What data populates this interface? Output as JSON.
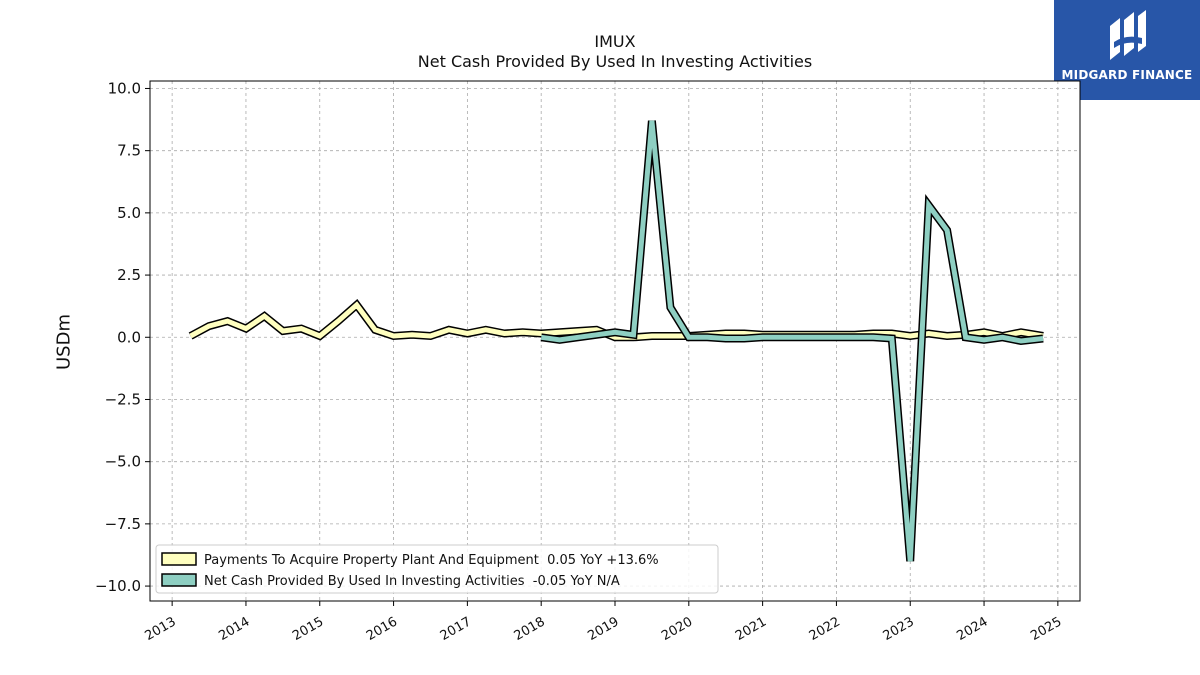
{
  "logo": {
    "text": "MIDGARD FINANCE"
  },
  "chart_data": {
    "type": "line",
    "title": "IMUX",
    "subtitle": "Net Cash Provided By Used In Investing Activities",
    "ylabel": "USDm",
    "xlabel": "",
    "xlim": [
      2012.7,
      2025.3
    ],
    "ylim": [
      -10.6,
      10.3
    ],
    "x_ticks": [
      2013,
      2014,
      2015,
      2016,
      2017,
      2018,
      2019,
      2020,
      2021,
      2022,
      2023,
      2024,
      2025
    ],
    "x_tick_labels": [
      "2013",
      "2014",
      "2015",
      "2016",
      "2017",
      "2018",
      "2019",
      "2020",
      "2021",
      "2022",
      "2023",
      "2024",
      "2025"
    ],
    "y_ticks": [
      10.0,
      7.5,
      5.0,
      2.5,
      0.0,
      -2.5,
      -5.0,
      -7.5,
      -10.0
    ],
    "y_tick_labels": [
      "10.0",
      "7.5",
      "5.0",
      "2.5",
      "0.0",
      "−2.5",
      "−5.0",
      "−7.5",
      "−10.0"
    ],
    "grid": true,
    "legend_position": "lower-left",
    "series": [
      {
        "name": "Payments To Acquire Property Plant And Equipment  0.05 YoY +13.6%",
        "color": "#ffffbf",
        "points": [
          [
            2013.25,
            0.05
          ],
          [
            2013.5,
            0.45
          ],
          [
            2013.75,
            0.65
          ],
          [
            2014.0,
            0.35
          ],
          [
            2014.25,
            0.85
          ],
          [
            2014.5,
            0.25
          ],
          [
            2014.75,
            0.35
          ],
          [
            2015.0,
            0.05
          ],
          [
            2015.25,
            0.65
          ],
          [
            2015.5,
            1.3
          ],
          [
            2015.75,
            0.3
          ],
          [
            2016.0,
            0.05
          ],
          [
            2016.25,
            0.1
          ],
          [
            2016.5,
            0.05
          ],
          [
            2016.75,
            0.3
          ],
          [
            2017.0,
            0.15
          ],
          [
            2017.25,
            0.3
          ],
          [
            2017.5,
            0.15
          ],
          [
            2017.75,
            0.2
          ],
          [
            2018.0,
            0.15
          ],
          [
            2018.25,
            0.2
          ],
          [
            2018.5,
            0.25
          ],
          [
            2018.75,
            0.3
          ],
          [
            2019.0,
            0.0
          ],
          [
            2019.25,
            0.0
          ],
          [
            2019.5,
            0.05
          ],
          [
            2019.75,
            0.05
          ],
          [
            2020.0,
            0.05
          ],
          [
            2020.25,
            0.1
          ],
          [
            2020.5,
            0.15
          ],
          [
            2020.75,
            0.15
          ],
          [
            2021.0,
            0.1
          ],
          [
            2021.25,
            0.1
          ],
          [
            2021.5,
            0.1
          ],
          [
            2021.75,
            0.1
          ],
          [
            2022.0,
            0.1
          ],
          [
            2022.25,
            0.1
          ],
          [
            2022.5,
            0.15
          ],
          [
            2022.75,
            0.15
          ],
          [
            2023.0,
            0.05
          ],
          [
            2023.25,
            0.15
          ],
          [
            2023.5,
            0.05
          ],
          [
            2023.75,
            0.1
          ],
          [
            2024.0,
            0.2
          ],
          [
            2024.25,
            0.05
          ],
          [
            2024.5,
            0.2
          ],
          [
            2024.8,
            0.05
          ]
        ]
      },
      {
        "name": "Net Cash Provided By Used In Investing Activities  -0.05 YoY N/A",
        "color": "#8ecfc2",
        "points": [
          [
            2018.0,
            0.0
          ],
          [
            2018.25,
            -0.1
          ],
          [
            2018.5,
            0.0
          ],
          [
            2018.75,
            0.1
          ],
          [
            2019.0,
            0.2
          ],
          [
            2019.25,
            0.1
          ],
          [
            2019.5,
            8.7
          ],
          [
            2019.75,
            1.2
          ],
          [
            2020.0,
            0.0
          ],
          [
            2020.25,
            0.0
          ],
          [
            2020.5,
            -0.05
          ],
          [
            2020.75,
            -0.05
          ],
          [
            2021.0,
            0.0
          ],
          [
            2021.25,
            0.0
          ],
          [
            2021.5,
            0.0
          ],
          [
            2021.75,
            0.0
          ],
          [
            2022.0,
            0.0
          ],
          [
            2022.25,
            0.0
          ],
          [
            2022.5,
            0.0
          ],
          [
            2022.75,
            -0.05
          ],
          [
            2023.0,
            -9.0
          ],
          [
            2023.25,
            5.3
          ],
          [
            2023.5,
            4.3
          ],
          [
            2023.75,
            0.0
          ],
          [
            2024.0,
            -0.1
          ],
          [
            2024.25,
            0.0
          ],
          [
            2024.5,
            -0.15
          ],
          [
            2024.8,
            -0.05
          ]
        ]
      }
    ]
  }
}
